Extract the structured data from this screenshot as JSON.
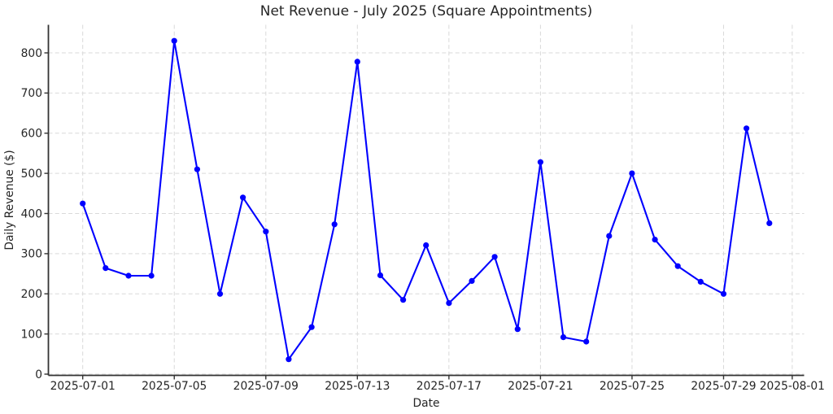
{
  "figure": {
    "title": "Net Revenue - July 2025 (Square Appointments)",
    "xlabel": "Date",
    "ylabel": "Daily Revenue ($)"
  },
  "chart_data": {
    "type": "line",
    "title": "Net Revenue - July 2025 (Square Appointments)",
    "xlabel": "Date",
    "ylabel": "Daily Revenue ($)",
    "x": [
      "2025-07-01",
      "2025-07-02",
      "2025-07-03",
      "2025-07-04",
      "2025-07-05",
      "2025-07-06",
      "2025-07-07",
      "2025-07-08",
      "2025-07-09",
      "2025-07-10",
      "2025-07-11",
      "2025-07-12",
      "2025-07-13",
      "2025-07-14",
      "2025-07-15",
      "2025-07-16",
      "2025-07-17",
      "2025-07-18",
      "2025-07-19",
      "2025-07-20",
      "2025-07-21",
      "2025-07-22",
      "2025-07-23",
      "2025-07-24",
      "2025-07-25",
      "2025-07-26",
      "2025-07-27",
      "2025-07-28",
      "2025-07-29",
      "2025-07-30",
      "2025-07-31"
    ],
    "values": [
      425,
      264,
      245,
      245,
      830,
      510,
      200,
      440,
      355,
      37,
      117,
      373,
      778,
      246,
      185,
      321,
      177,
      232,
      292,
      112,
      528,
      92,
      81,
      344,
      500,
      335,
      269,
      230,
      200,
      612,
      376
    ],
    "x_tick_labels": [
      "2025-07-01",
      "2025-07-05",
      "2025-07-09",
      "2025-07-13",
      "2025-07-17",
      "2025-07-21",
      "2025-07-25",
      "2025-07-29",
      "2025-08-01"
    ],
    "x_tick_day_offsets": [
      0,
      4,
      8,
      12,
      16,
      20,
      24,
      28,
      31
    ],
    "y_tick_labels": [
      "0",
      "100",
      "200",
      "300",
      "400",
      "500",
      "600",
      "700",
      "800"
    ],
    "y_tick_values": [
      0,
      100,
      200,
      300,
      400,
      500,
      600,
      700,
      800
    ],
    "ylim": [
      -5,
      870
    ],
    "grid": true,
    "grid_style": "dashed",
    "legend": false,
    "series_name": "Daily Revenue",
    "line_color": "#0000ff",
    "marker": "circle",
    "marker_color": "#0000ff",
    "background_color": "#ffffff",
    "text_color": "#262626",
    "axis_color": "#333333",
    "grid_color": "#d9d9d9"
  }
}
